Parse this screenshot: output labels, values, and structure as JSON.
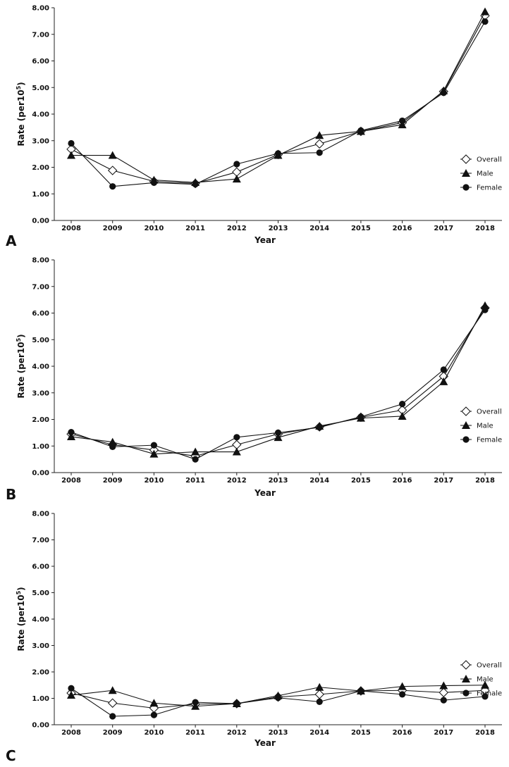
{
  "chart_data": [
    {
      "type": "line",
      "panel": "A",
      "xlabel": "Year",
      "ylabel": "Rate (per10",
      "ylabel_sup": "5",
      "ylabel_close": ")",
      "ylim": [
        0,
        8
      ],
      "yticks": [
        "0.00",
        "1.00",
        "2.00",
        "3.00",
        "4.00",
        "5.00",
        "6.00",
        "7.00",
        "8.00"
      ],
      "categories": [
        "2008",
        "2009",
        "2010",
        "2011",
        "2012",
        "2013",
        "2014",
        "2015",
        "2016",
        "2017",
        "2018"
      ],
      "series": [
        {
          "name": "Overall",
          "marker": "diamond-open",
          "values": [
            2.68,
            1.88,
            1.47,
            1.39,
            1.82,
            2.48,
            2.88,
            3.35,
            3.68,
            4.85,
            7.7
          ]
        },
        {
          "name": "Male",
          "marker": "triangle",
          "values": [
            2.45,
            2.45,
            1.52,
            1.43,
            1.56,
            2.45,
            3.2,
            3.35,
            3.6,
            4.88,
            7.85
          ]
        },
        {
          "name": "Female",
          "marker": "circle",
          "values": [
            2.9,
            1.28,
            1.42,
            1.36,
            2.12,
            2.52,
            2.55,
            3.38,
            3.75,
            4.8,
            7.48
          ]
        }
      ],
      "legend": [
        "Overall",
        "Male",
        "Female"
      ]
    },
    {
      "type": "line",
      "panel": "B",
      "xlabel": "Year",
      "ylabel": "Rate (per10",
      "ylabel_sup": "5",
      "ylabel_close": ")",
      "ylim": [
        0,
        8
      ],
      "yticks": [
        "0.00",
        "1.00",
        "2.00",
        "3.00",
        "4.00",
        "5.00",
        "6.00",
        "7.00",
        "8.00"
      ],
      "categories": [
        "2008",
        "2009",
        "2010",
        "2011",
        "2012",
        "2013",
        "2014",
        "2015",
        "2016",
        "2017",
        "2018"
      ],
      "series": [
        {
          "name": "Overall",
          "marker": "diamond-open",
          "values": [
            1.45,
            1.05,
            0.85,
            0.62,
            1.05,
            1.45,
            1.72,
            2.08,
            2.35,
            3.62,
            6.2
          ]
        },
        {
          "name": "Male",
          "marker": "triangle",
          "values": [
            1.35,
            1.15,
            0.7,
            0.78,
            0.78,
            1.32,
            1.75,
            2.05,
            2.12,
            3.42,
            6.28
          ]
        },
        {
          "name": "Female",
          "marker": "circle",
          "values": [
            1.52,
            0.97,
            1.03,
            0.5,
            1.33,
            1.5,
            1.7,
            2.1,
            2.58,
            3.87,
            6.12
          ]
        }
      ],
      "legend": [
        "Overall",
        "Male",
        "Female"
      ]
    },
    {
      "type": "line",
      "panel": "C",
      "xlabel": "Year",
      "ylabel": "Rate (per10",
      "ylabel_sup": "5",
      "ylabel_close": ")",
      "ylim": [
        0,
        8
      ],
      "yticks": [
        "0.00",
        "1.00",
        "2.00",
        "3.00",
        "4.00",
        "5.00",
        "6.00",
        "7.00",
        "8.00"
      ],
      "categories": [
        "2008",
        "2009",
        "2010",
        "2011",
        "2012",
        "2013",
        "2014",
        "2015",
        "2016",
        "2017",
        "2018"
      ],
      "series": [
        {
          "name": "Overall",
          "marker": "diamond-open",
          "values": [
            1.2,
            0.82,
            0.63,
            0.78,
            0.8,
            1.05,
            1.15,
            1.28,
            1.3,
            1.22,
            1.3
          ]
        },
        {
          "name": "Male",
          "marker": "triangle",
          "values": [
            1.12,
            1.3,
            0.82,
            0.7,
            0.8,
            1.1,
            1.42,
            1.28,
            1.45,
            1.48,
            1.5
          ]
        },
        {
          "name": "Female",
          "marker": "circle",
          "values": [
            1.38,
            0.32,
            0.37,
            0.85,
            0.8,
            1.02,
            0.87,
            1.28,
            1.15,
            0.93,
            1.07
          ]
        }
      ],
      "legend": [
        "Overall",
        "Male",
        "Female"
      ]
    }
  ]
}
